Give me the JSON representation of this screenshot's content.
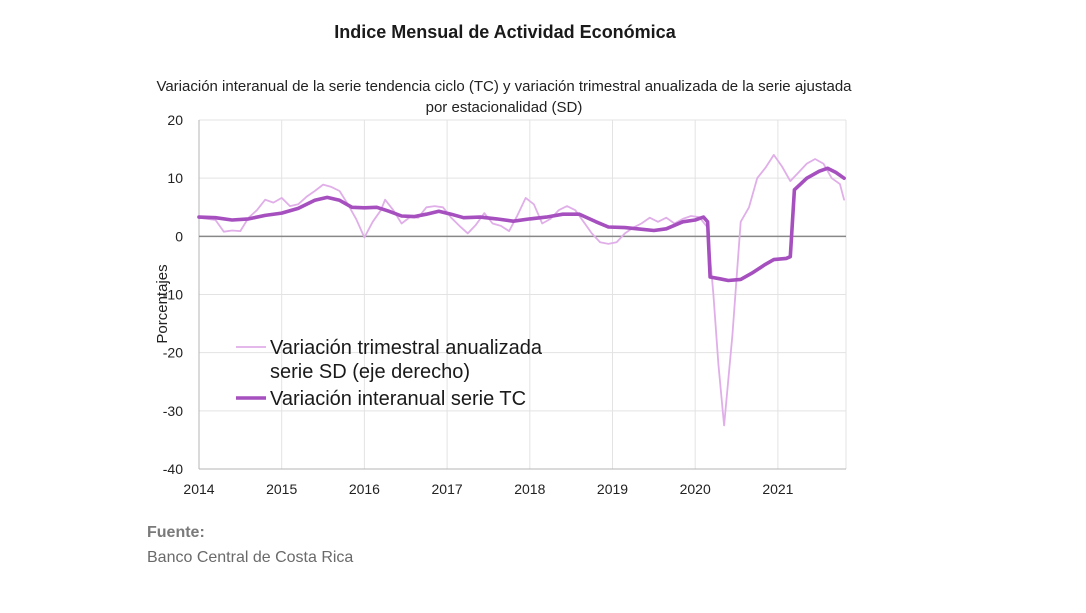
{
  "title": "Indice Mensual de  Actividad Económica",
  "subtitle": "Variación interanual de la serie tendencia ciclo (TC) y variación trimestral anualizada de la serie ajustada por estacionalidad (SD)",
  "source": {
    "label": "Fuente:",
    "text": "Banco Central de Costa Rica"
  },
  "chart_data": {
    "type": "line",
    "ylabel": "Porcentajes",
    "xlabel": "",
    "ylim": [
      -40,
      20
    ],
    "yticks": [
      20,
      10,
      0,
      -10,
      -20,
      -30,
      -40
    ],
    "xlim": [
      2014,
      2021.85
    ],
    "xticks": [
      "2014",
      "2015",
      "2016",
      "2017",
      "2018",
      "2019",
      "2020",
      "2021"
    ],
    "grid": true,
    "legend_position": "lower-left",
    "series": [
      {
        "name": "Variación trimestral anualizada serie SD (eje derecho)",
        "color": "#e0aee8",
        "points": [
          [
            2014.0,
            3.2
          ],
          [
            2014.1,
            3.0
          ],
          [
            2014.2,
            2.8
          ],
          [
            2014.3,
            0.8
          ],
          [
            2014.4,
            1.0
          ],
          [
            2014.5,
            0.9
          ],
          [
            2014.6,
            3.2
          ],
          [
            2014.7,
            4.5
          ],
          [
            2014.8,
            6.3
          ],
          [
            2014.9,
            5.8
          ],
          [
            2015.0,
            6.6
          ],
          [
            2015.1,
            5.2
          ],
          [
            2015.2,
            5.5
          ],
          [
            2015.3,
            6.8
          ],
          [
            2015.4,
            7.8
          ],
          [
            2015.5,
            8.9
          ],
          [
            2015.6,
            8.5
          ],
          [
            2015.7,
            7.8
          ],
          [
            2015.8,
            5.5
          ],
          [
            2015.9,
            3.0
          ],
          [
            2016.0,
            -0.2
          ],
          [
            2016.1,
            2.5
          ],
          [
            2016.2,
            4.5
          ],
          [
            2016.25,
            6.3
          ],
          [
            2016.35,
            4.5
          ],
          [
            2016.45,
            2.2
          ],
          [
            2016.55,
            3.3
          ],
          [
            2016.65,
            3.2
          ],
          [
            2016.75,
            5.0
          ],
          [
            2016.85,
            5.2
          ],
          [
            2016.95,
            5.0
          ],
          [
            2017.05,
            3.2
          ],
          [
            2017.15,
            1.8
          ],
          [
            2017.25,
            0.5
          ],
          [
            2017.35,
            2.0
          ],
          [
            2017.45,
            4.0
          ],
          [
            2017.55,
            2.2
          ],
          [
            2017.65,
            1.8
          ],
          [
            2017.75,
            0.9
          ],
          [
            2017.85,
            3.6
          ],
          [
            2017.95,
            6.6
          ],
          [
            2018.05,
            5.5
          ],
          [
            2018.15,
            2.2
          ],
          [
            2018.25,
            3.0
          ],
          [
            2018.35,
            4.5
          ],
          [
            2018.45,
            5.2
          ],
          [
            2018.55,
            4.5
          ],
          [
            2018.65,
            2.5
          ],
          [
            2018.75,
            0.5
          ],
          [
            2018.85,
            -1.0
          ],
          [
            2018.95,
            -1.3
          ],
          [
            2019.05,
            -1.0
          ],
          [
            2019.15,
            0.5
          ],
          [
            2019.25,
            1.5
          ],
          [
            2019.35,
            2.2
          ],
          [
            2019.45,
            3.2
          ],
          [
            2019.55,
            2.5
          ],
          [
            2019.65,
            3.2
          ],
          [
            2019.75,
            2.2
          ],
          [
            2019.85,
            3.0
          ],
          [
            2019.95,
            3.5
          ],
          [
            2020.05,
            3.3
          ],
          [
            2020.15,
            1.5
          ],
          [
            2020.22,
            -10.0
          ],
          [
            2020.28,
            -22.0
          ],
          [
            2020.35,
            -32.5
          ],
          [
            2020.45,
            -17.0
          ],
          [
            2020.55,
            2.5
          ],
          [
            2020.65,
            5.0
          ],
          [
            2020.75,
            10.0
          ],
          [
            2020.85,
            11.8
          ],
          [
            2020.95,
            14.0
          ],
          [
            2021.05,
            12.0
          ],
          [
            2021.15,
            9.5
          ],
          [
            2021.25,
            11.0
          ],
          [
            2021.35,
            12.5
          ],
          [
            2021.45,
            13.3
          ],
          [
            2021.55,
            12.5
          ],
          [
            2021.65,
            10.0
          ],
          [
            2021.75,
            9.0
          ],
          [
            2021.8,
            6.3
          ]
        ]
      },
      {
        "name": "Variación interanual serie TC",
        "color": "#a64fbf",
        "points": [
          [
            2014.0,
            3.3
          ],
          [
            2014.2,
            3.2
          ],
          [
            2014.4,
            2.8
          ],
          [
            2014.6,
            3.0
          ],
          [
            2014.8,
            3.6
          ],
          [
            2015.0,
            4.0
          ],
          [
            2015.2,
            4.8
          ],
          [
            2015.4,
            6.2
          ],
          [
            2015.55,
            6.7
          ],
          [
            2015.7,
            6.2
          ],
          [
            2015.85,
            5.0
          ],
          [
            2016.0,
            4.9
          ],
          [
            2016.15,
            5.0
          ],
          [
            2016.3,
            4.3
          ],
          [
            2016.45,
            3.5
          ],
          [
            2016.6,
            3.4
          ],
          [
            2016.75,
            3.8
          ],
          [
            2016.9,
            4.3
          ],
          [
            2017.05,
            3.8
          ],
          [
            2017.2,
            3.2
          ],
          [
            2017.4,
            3.3
          ],
          [
            2017.6,
            3.0
          ],
          [
            2017.8,
            2.6
          ],
          [
            2018.0,
            3.0
          ],
          [
            2018.2,
            3.3
          ],
          [
            2018.4,
            3.8
          ],
          [
            2018.6,
            3.8
          ],
          [
            2018.8,
            2.5
          ],
          [
            2018.95,
            1.6
          ],
          [
            2019.15,
            1.5
          ],
          [
            2019.3,
            1.3
          ],
          [
            2019.5,
            1.0
          ],
          [
            2019.65,
            1.3
          ],
          [
            2019.85,
            2.5
          ],
          [
            2020.0,
            2.8
          ],
          [
            2020.1,
            3.3
          ],
          [
            2020.15,
            2.5
          ],
          [
            2020.18,
            -7.0
          ],
          [
            2020.3,
            -7.3
          ],
          [
            2020.4,
            -7.6
          ],
          [
            2020.55,
            -7.4
          ],
          [
            2020.7,
            -6.2
          ],
          [
            2020.85,
            -4.8
          ],
          [
            2020.95,
            -4.0
          ],
          [
            2021.1,
            -3.8
          ],
          [
            2021.15,
            -3.5
          ],
          [
            2021.2,
            8.0
          ],
          [
            2021.35,
            10.0
          ],
          [
            2021.5,
            11.2
          ],
          [
            2021.6,
            11.7
          ],
          [
            2021.7,
            11.0
          ],
          [
            2021.8,
            10.0
          ]
        ]
      }
    ]
  }
}
